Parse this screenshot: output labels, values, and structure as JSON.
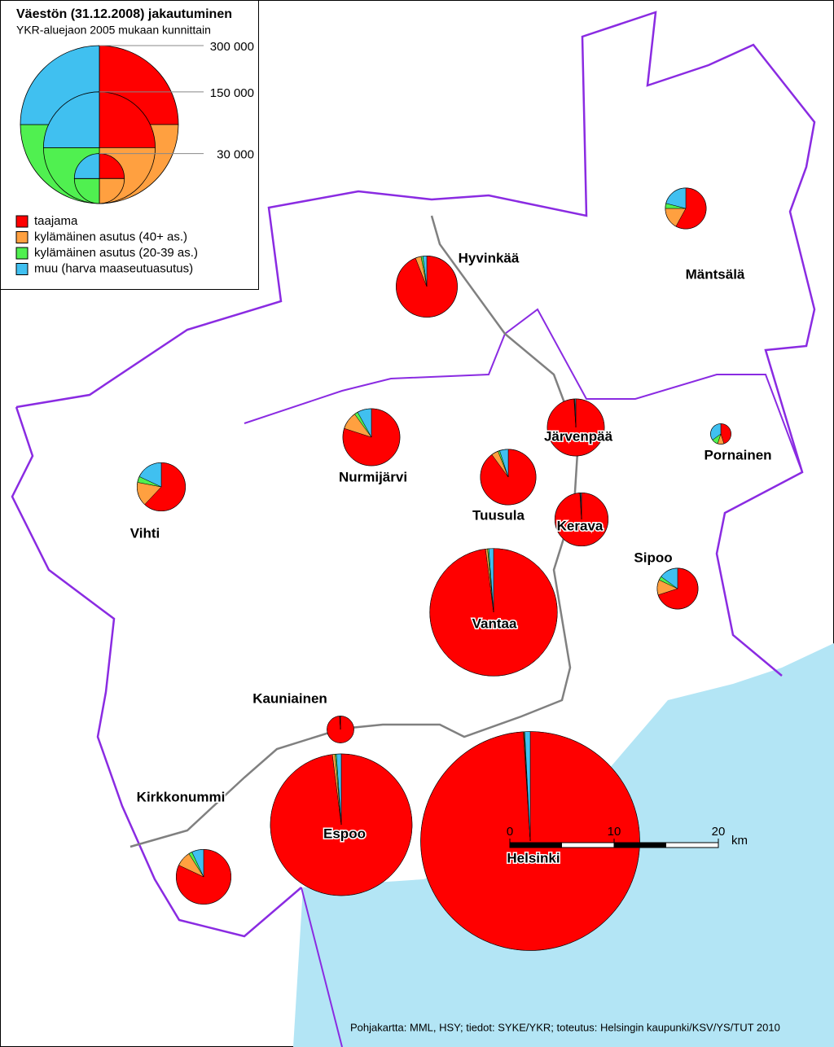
{
  "map": {
    "title": "Väestön (31.12.2008) jakautuminen",
    "subtitle": "YKR-aluejaon 2005 mukaan kunnittain",
    "legend": {
      "sizes": [
        {
          "value": 300000,
          "label": "300 000"
        },
        {
          "value": 150000,
          "label": "150 000"
        },
        {
          "value": 30000,
          "label": "30 000"
        }
      ],
      "items": [
        {
          "name": "taajama",
          "color": "#ff0000"
        },
        {
          "name": "kylämäinen asutus (40+ as.)",
          "color": "#ffa040"
        },
        {
          "name": "kylämäinen asutus (20-39 as.)",
          "color": "#50f050"
        },
        {
          "name": "muu (harva maaseutuasutus)",
          "color": "#40c0f0"
        }
      ]
    },
    "municipalities": [
      {
        "name": "Hyvinkää",
        "population": 45000,
        "shares": [
          94,
          3,
          1,
          2
        ]
      },
      {
        "name": "Mäntsälä",
        "population": 20000,
        "shares": [
          58,
          17,
          4,
          21
        ]
      },
      {
        "name": "Nurmijärvi",
        "population": 39000,
        "shares": [
          80,
          10,
          2,
          8
        ]
      },
      {
        "name": "Vihti",
        "population": 28000,
        "shares": [
          62,
          16,
          4,
          18
        ]
      },
      {
        "name": "Tuusula",
        "population": 37000,
        "shares": [
          90,
          4,
          1,
          5
        ]
      },
      {
        "name": "Järvenpää",
        "population": 39000,
        "shares": [
          99,
          0.3,
          0.2,
          0.5
        ]
      },
      {
        "name": "Pornainen",
        "population": 5000,
        "shares": [
          45,
          10,
          10,
          35
        ]
      },
      {
        "name": "Kerava",
        "population": 34000,
        "shares": [
          99,
          0.3,
          0.2,
          0.5
        ]
      },
      {
        "name": "Sipoo",
        "population": 20000,
        "shares": [
          70,
          12,
          3,
          15
        ]
      },
      {
        "name": "Vantaa",
        "population": 195000,
        "shares": [
          98,
          0.5,
          0.3,
          1.2
        ]
      },
      {
        "name": "Kauniainen",
        "population": 8600,
        "shares": [
          99,
          0.3,
          0.2,
          0.5
        ]
      },
      {
        "name": "Kirkkonummi",
        "population": 36000,
        "shares": [
          82,
          9,
          2,
          7
        ]
      },
      {
        "name": "Espoo",
        "population": 241000,
        "shares": [
          98,
          0.6,
          0.3,
          1.1
        ]
      },
      {
        "name": "Helsinki",
        "population": 576000,
        "shares": [
          99,
          0.1,
          0.1,
          0.8
        ]
      }
    ],
    "scale": {
      "ticks": [
        0,
        10,
        20
      ],
      "unit": "km"
    },
    "credits": "Pohjakartta: MML, HSY; tiedot: SYKE/YKR; toteutus: Helsingin kaupunki/KSV/YS/TUT 2010"
  }
}
